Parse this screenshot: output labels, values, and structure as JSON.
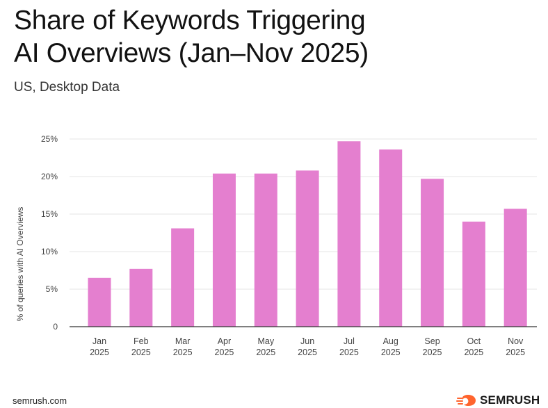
{
  "header": {
    "title": "Share of Keywords Triggering\nAI Overviews (Jan–Nov 2025)",
    "subtitle": "US, Desktop Data"
  },
  "footer": {
    "source": "semrush.com",
    "brand": "SEMRUSH",
    "brand_icon": "semrush-flame-icon",
    "brand_color": "#ff642d"
  },
  "colors": {
    "bar": "#e47fcf",
    "grid": "#e6e6e6",
    "axis": "#333333",
    "tick_text": "#444444"
  },
  "chart_data": {
    "type": "bar",
    "title": "Share of Keywords Triggering AI Overviews (Jan–Nov 2025)",
    "subtitle": "US, Desktop Data",
    "xlabel": "",
    "ylabel": "% of queries with AI Overviews",
    "categories": [
      [
        "Jan",
        "2025"
      ],
      [
        "Feb",
        "2025"
      ],
      [
        "Mar",
        "2025"
      ],
      [
        "Apr",
        "2025"
      ],
      [
        "May",
        "2025"
      ],
      [
        "Jun",
        "2025"
      ],
      [
        "Jul",
        "2025"
      ],
      [
        "Aug",
        "2025"
      ],
      [
        "Sep",
        "2025"
      ],
      [
        "Oct",
        "2025"
      ],
      [
        "Nov",
        "2025"
      ]
    ],
    "values": [
      6.5,
      7.7,
      13.1,
      20.4,
      20.4,
      20.8,
      24.7,
      23.6,
      19.7,
      14.0,
      15.7
    ],
    "ylim": [
      0,
      25
    ],
    "yticks": [
      0,
      5,
      10,
      15,
      20,
      25
    ],
    "ytick_labels": [
      "0",
      "5%",
      "10%",
      "15%",
      "20%",
      "25%"
    ],
    "grid": true
  }
}
